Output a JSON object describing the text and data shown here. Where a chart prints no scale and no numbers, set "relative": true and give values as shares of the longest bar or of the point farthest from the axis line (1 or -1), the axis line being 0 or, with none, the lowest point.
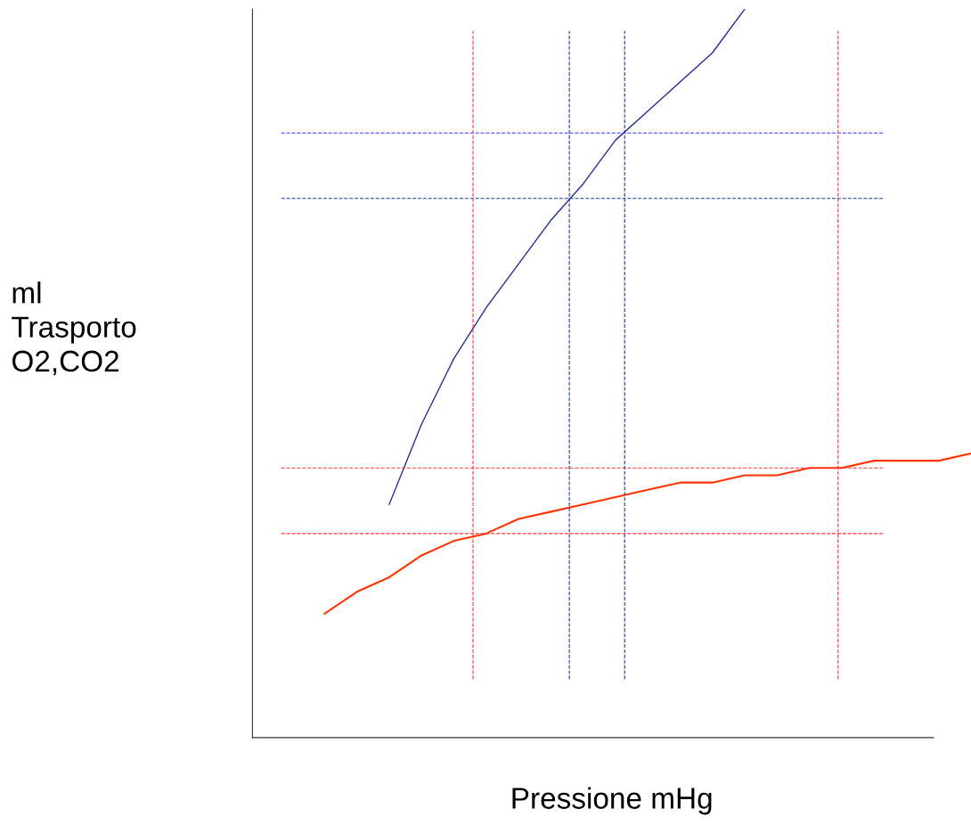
{
  "chart_data": {
    "type": "line",
    "relative": true,
    "xlabel": "Pressione mHg",
    "annotations": [
      "ml\nTrasporto\nO2,CO2"
    ],
    "categories": [
      null,
      null,
      null,
      null,
      null,
      null,
      null,
      null,
      null,
      null,
      null,
      null,
      null,
      null,
      null,
      null,
      null,
      null,
      null,
      null,
      null
    ],
    "series": [
      {
        "color": "#2a2a9a",
        "values": [
          null,
          null,
          0.32,
          0.43,
          0.52,
          0.59,
          0.65,
          0.71,
          0.76,
          0.82,
          0.86,
          0.9,
          0.94,
          1.0,
          null,
          null,
          null,
          null,
          null,
          null,
          null
        ]
      },
      {
        "color": "#ff3300",
        "values": [
          0.17,
          0.2,
          0.22,
          0.25,
          0.27,
          0.28,
          0.3,
          0.31,
          0.32,
          0.33,
          0.34,
          0.35,
          0.35,
          0.36,
          0.36,
          0.37,
          0.37,
          0.38,
          0.38,
          0.38,
          0.39
        ]
      }
    ],
    "ref_lines": [
      {
        "axis": "y",
        "value": 0.83,
        "color": "#3333ff",
        "line_style": "dashed"
      },
      {
        "axis": "y",
        "value": 0.74,
        "color": "#1f3a93",
        "line_style": "dashed"
      },
      {
        "axis": "y",
        "value": 0.37,
        "color": "#ff3333",
        "line_style": "dashed"
      },
      {
        "axis": "y",
        "value": 0.28,
        "color": "#ff3333",
        "line_style": "dashed"
      }
    ],
    "legend": false,
    "marker": "none",
    "line_style": "solid"
  }
}
